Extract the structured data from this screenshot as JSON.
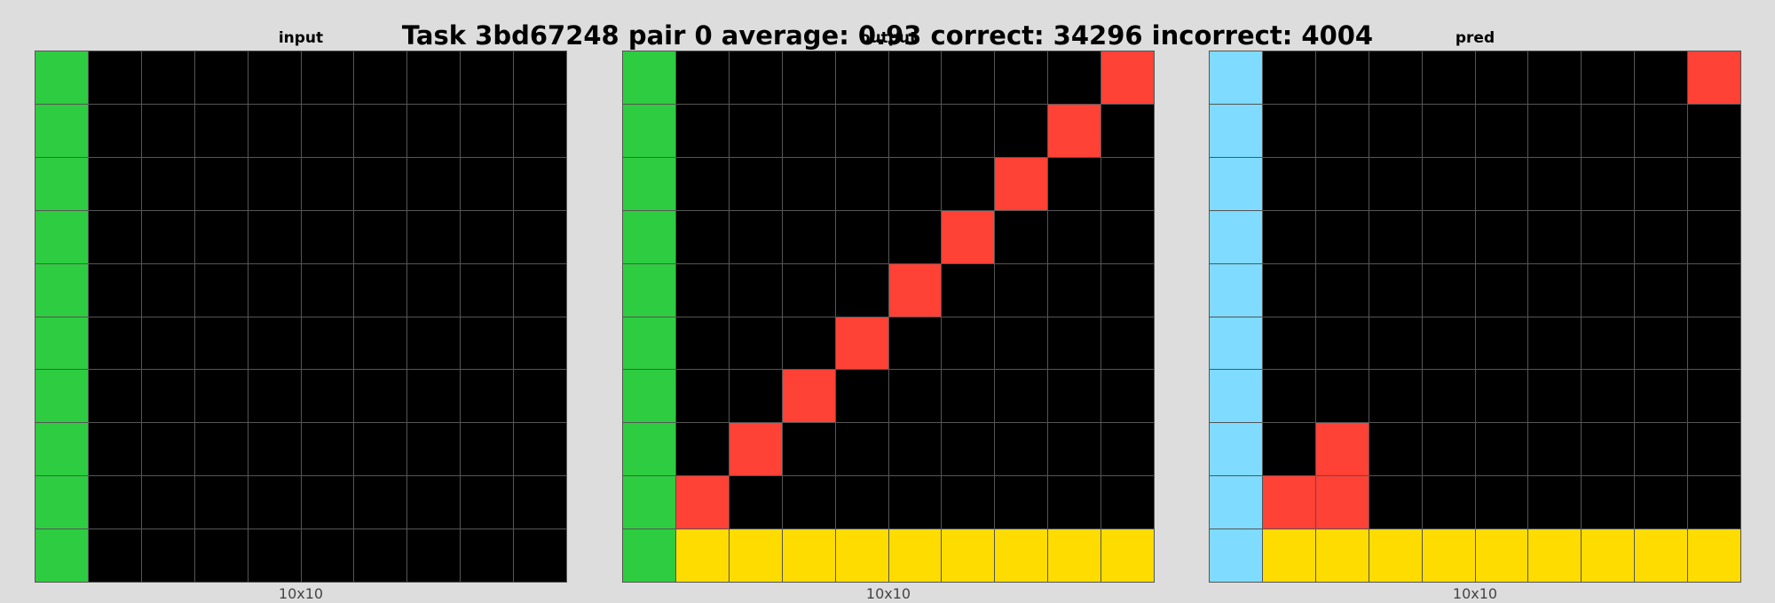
{
  "title": "Task 3bd67248 pair 0 average: 0.93 correct: 34296 incorrect: 4004",
  "palette": {
    "0": "#000000",
    "2": "#ff4136",
    "3": "#2ecc40",
    "4": "#ffdc00",
    "8": "#7fdbff"
  },
  "panels": [
    {
      "title": "input",
      "size_label": "10x10",
      "grid": [
        [
          3,
          0,
          0,
          0,
          0,
          0,
          0,
          0,
          0,
          0
        ],
        [
          3,
          0,
          0,
          0,
          0,
          0,
          0,
          0,
          0,
          0
        ],
        [
          3,
          0,
          0,
          0,
          0,
          0,
          0,
          0,
          0,
          0
        ],
        [
          3,
          0,
          0,
          0,
          0,
          0,
          0,
          0,
          0,
          0
        ],
        [
          3,
          0,
          0,
          0,
          0,
          0,
          0,
          0,
          0,
          0
        ],
        [
          3,
          0,
          0,
          0,
          0,
          0,
          0,
          0,
          0,
          0
        ],
        [
          3,
          0,
          0,
          0,
          0,
          0,
          0,
          0,
          0,
          0
        ],
        [
          3,
          0,
          0,
          0,
          0,
          0,
          0,
          0,
          0,
          0
        ],
        [
          3,
          0,
          0,
          0,
          0,
          0,
          0,
          0,
          0,
          0
        ],
        [
          3,
          0,
          0,
          0,
          0,
          0,
          0,
          0,
          0,
          0
        ]
      ]
    },
    {
      "title": "output",
      "size_label": "10x10",
      "grid": [
        [
          3,
          0,
          0,
          0,
          0,
          0,
          0,
          0,
          0,
          2
        ],
        [
          3,
          0,
          0,
          0,
          0,
          0,
          0,
          0,
          2,
          0
        ],
        [
          3,
          0,
          0,
          0,
          0,
          0,
          0,
          2,
          0,
          0
        ],
        [
          3,
          0,
          0,
          0,
          0,
          0,
          2,
          0,
          0,
          0
        ],
        [
          3,
          0,
          0,
          0,
          0,
          2,
          0,
          0,
          0,
          0
        ],
        [
          3,
          0,
          0,
          0,
          2,
          0,
          0,
          0,
          0,
          0
        ],
        [
          3,
          0,
          0,
          2,
          0,
          0,
          0,
          0,
          0,
          0
        ],
        [
          3,
          0,
          2,
          0,
          0,
          0,
          0,
          0,
          0,
          0
        ],
        [
          3,
          2,
          0,
          0,
          0,
          0,
          0,
          0,
          0,
          0
        ],
        [
          3,
          4,
          4,
          4,
          4,
          4,
          4,
          4,
          4,
          4
        ]
      ]
    },
    {
      "title": "pred",
      "size_label": "10x10",
      "grid": [
        [
          8,
          0,
          0,
          0,
          0,
          0,
          0,
          0,
          0,
          2
        ],
        [
          8,
          0,
          0,
          0,
          0,
          0,
          0,
          0,
          0,
          0
        ],
        [
          8,
          0,
          0,
          0,
          0,
          0,
          0,
          0,
          0,
          0
        ],
        [
          8,
          0,
          0,
          0,
          0,
          0,
          0,
          0,
          0,
          0
        ],
        [
          8,
          0,
          0,
          0,
          0,
          0,
          0,
          0,
          0,
          0
        ],
        [
          8,
          0,
          0,
          0,
          0,
          0,
          0,
          0,
          0,
          0
        ],
        [
          8,
          0,
          0,
          0,
          0,
          0,
          0,
          0,
          0,
          0
        ],
        [
          8,
          0,
          2,
          0,
          0,
          0,
          0,
          0,
          0,
          0
        ],
        [
          8,
          2,
          2,
          0,
          0,
          0,
          0,
          0,
          0,
          0
        ],
        [
          8,
          4,
          4,
          4,
          4,
          4,
          4,
          4,
          4,
          4
        ]
      ]
    }
  ]
}
